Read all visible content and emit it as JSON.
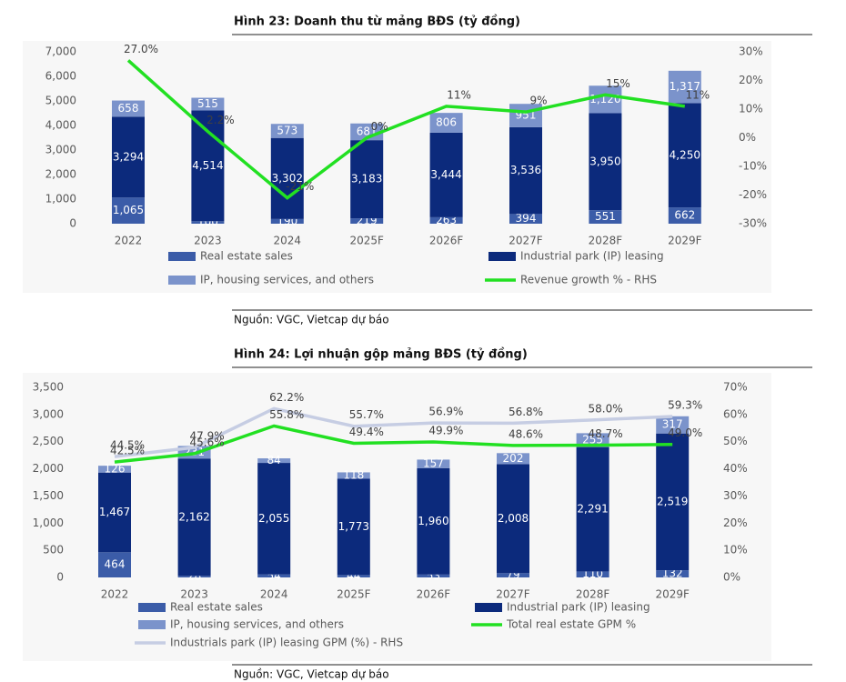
{
  "chart_data": [
    {
      "type": "bar",
      "stacked": true,
      "title": "Hình 23: Doanh thu từ mảng BĐS (tỷ đồng)",
      "source": "Nguồn: VGC, Vietcap dự báo",
      "categories": [
        "2022",
        "2023",
        "2024",
        "2025F",
        "2026F",
        "2027F",
        "2028F",
        "2029F"
      ],
      "series": [
        {
          "name": "Real estate sales",
          "color": "#3b5ca8",
          "values": [
            1065,
            100,
            190,
            219,
            263,
            394,
            551,
            662
          ],
          "value_labels": [
            "1,065",
            "100",
            "190",
            "219",
            "263",
            "394",
            "551",
            "662"
          ]
        },
        {
          "name": "Industrial park (IP) leasing",
          "color": "#0c2a7c",
          "values": [
            3294,
            4514,
            3302,
            3183,
            3444,
            3536,
            3950,
            4250
          ],
          "value_labels": [
            "3,294",
            "4,514",
            "3,302",
            "3,183",
            "3,444",
            "3,536",
            "3,950",
            "4,250"
          ]
        },
        {
          "name": "IP, housing services, and others",
          "color": "#7b93cb",
          "values": [
            658,
            515,
            573,
            681,
            806,
            951,
            1120,
            1317
          ],
          "value_labels": [
            "658",
            "515",
            "573",
            "681",
            "806",
            "951",
            "1,120",
            "1,317"
          ]
        },
        {
          "name": "Revenue growth % - RHS",
          "type": "line",
          "axis": "y2",
          "color": "#22e022",
          "values": [
            27.0,
            2.2,
            -21,
            0,
            11,
            9,
            15,
            11
          ],
          "value_labels": [
            "27.0%",
            "2.2%",
            "-21%",
            "0%",
            "11%",
            "9%",
            "15%",
            "11%"
          ]
        }
      ],
      "ylim": [
        0,
        7000
      ],
      "yticks": [
        0,
        {
          "value": 1000,
          "label": "1,000"
        },
        {
          "value": 2000,
          "label": "2,000"
        },
        {
          "value": 3000,
          "label": "3,000"
        },
        {
          "value": 4000,
          "label": "4,000"
        },
        {
          "value": 5000,
          "label": "5,000"
        },
        {
          "value": 6000,
          "label": "6,000"
        },
        {
          "value": 7000,
          "label": "7,000"
        }
      ],
      "y2lim": [
        -30,
        30
      ],
      "y2ticks": [
        {
          "value": -30,
          "label": "-30%"
        },
        {
          "value": -20,
          "label": "-20%"
        },
        {
          "value": -10,
          "label": "-10%"
        },
        {
          "value": 0,
          "label": "0%"
        },
        {
          "value": 10,
          "label": "10%"
        },
        {
          "value": 20,
          "label": "20%"
        },
        {
          "value": 30,
          "label": "30%"
        }
      ]
    },
    {
      "type": "bar",
      "stacked": true,
      "title": "Hình 24: Lợi nhuận gộp mảng BĐS (tỷ đồng)",
      "source": "Nguồn: VGC, Vietcap dự báo",
      "categories": [
        "2022",
        "2023",
        "2024",
        "2025F",
        "2026F",
        "2027F",
        "2028F",
        "2029F"
      ],
      "series": [
        {
          "name": "Real estate sales",
          "color": "#3b5ca8",
          "values": [
            464,
            28,
            54,
            44,
            53,
            79,
            110,
            132
          ]
        },
        {
          "name": "Industrial park (IP) leasing",
          "color": "#0c2a7c",
          "values": [
            1467,
            2162,
            2055,
            1773,
            1960,
            2008,
            2291,
            2519
          ],
          "value_labels": [
            "1,467",
            "2,162",
            "2,055",
            "1,773",
            "1,960",
            "2,008",
            "2,291",
            "2,519"
          ]
        },
        {
          "name": "IP, housing services, and others",
          "color": "#7b93cb",
          "values": [
            126,
            231,
            84,
            118,
            157,
            202,
            255,
            317
          ]
        },
        {
          "name": "Total real estate GPM %",
          "type": "line",
          "axis": "y2",
          "color": "#22e022",
          "values": [
            42.5,
            45.6,
            55.8,
            49.4,
            49.9,
            48.6,
            48.7,
            49.0
          ],
          "value_labels": [
            "42.5%",
            "45.6%",
            "55.8%",
            "49.4%",
            "49.9%",
            "48.6%",
            "48.7%",
            "49.0%"
          ]
        },
        {
          "name": "Industrials park (IP) leasing GPM (%) - RHS",
          "type": "line",
          "axis": "y2",
          "color": "#c6cde3",
          "values": [
            44.5,
            47.9,
            62.2,
            55.7,
            56.9,
            56.8,
            58.0,
            59.3
          ],
          "value_labels": [
            "44.5%",
            "47.9%",
            "62.2%",
            "55.7%",
            "56.9%",
            "56.8%",
            "58.0%",
            "59.3%"
          ]
        }
      ],
      "ylim": [
        0,
        3500
      ],
      "yticks": [
        0,
        500,
        {
          "value": 1000,
          "label": "1,000"
        },
        {
          "value": 1500,
          "label": "1,500"
        },
        {
          "value": 2000,
          "label": "2,000"
        },
        {
          "value": 2500,
          "label": "2,500"
        },
        {
          "value": 3000,
          "label": "3,000"
        },
        {
          "value": 3500,
          "label": "3,500"
        }
      ],
      "y2lim": [
        0,
        70
      ],
      "y2ticks": [
        {
          "value": 0,
          "label": "0%"
        },
        {
          "value": 10,
          "label": "10%"
        },
        {
          "value": 20,
          "label": "20%"
        },
        {
          "value": 30,
          "label": "30%"
        },
        {
          "value": 40,
          "label": "40%"
        },
        {
          "value": 50,
          "label": "50%"
        },
        {
          "value": 60,
          "label": "60%"
        },
        {
          "value": 70,
          "label": "70%"
        }
      ]
    }
  ]
}
